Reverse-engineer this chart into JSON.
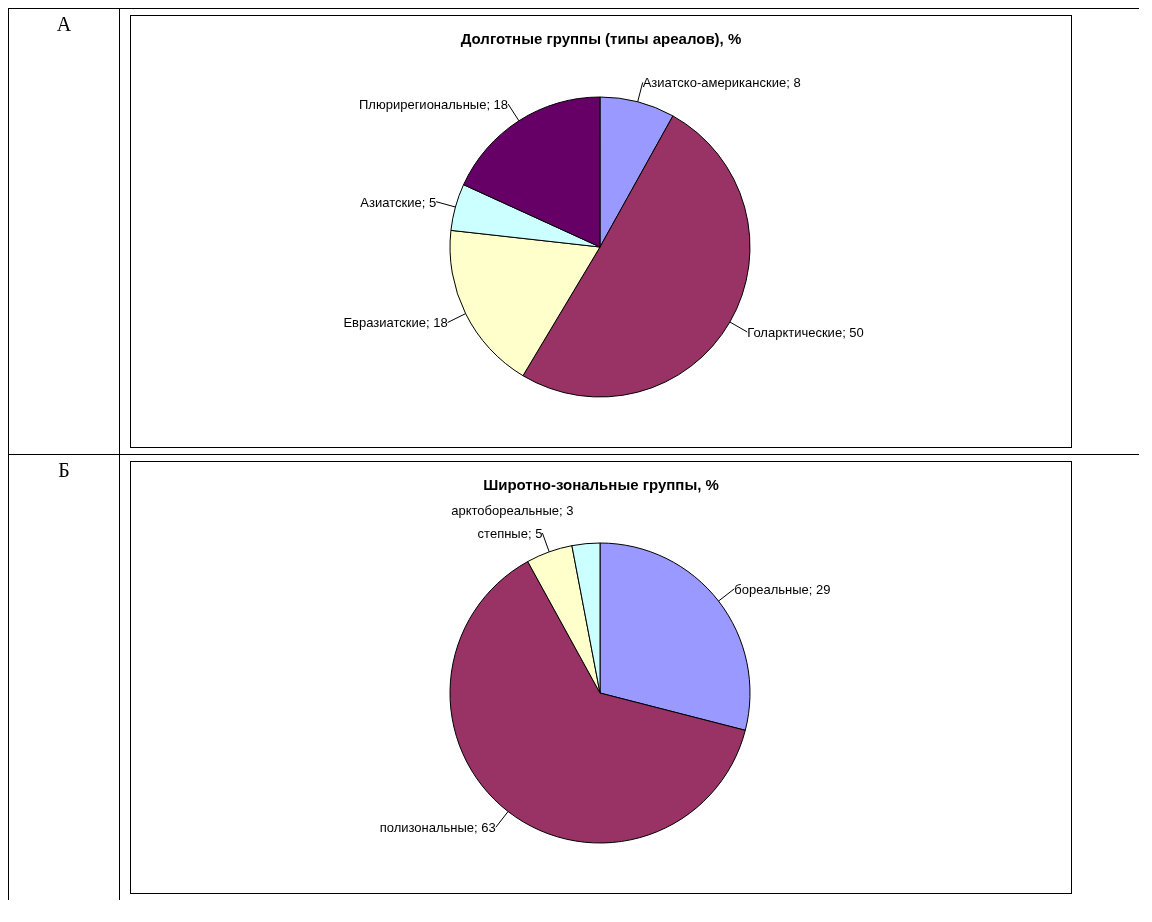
{
  "chart_data": [
    {
      "type": "pie",
      "title": "Долготные группы (типы ареалов), %",
      "annotations": [
        "А"
      ],
      "categories": [
        "Азиатско-американские",
        "Голарктические",
        "Евразиатские",
        "Азиатские",
        "Плюрирегиональные"
      ],
      "values": [
        8,
        50,
        18,
        5,
        18
      ],
      "value_labels": [
        "; 8",
        "; 50",
        "; 18",
        "; 5",
        "; 18"
      ],
      "colors": [
        "#9999ff",
        "#993366",
        "#ffffcc",
        "#ccffff",
        "#660066"
      ],
      "legend": false
    },
    {
      "type": "pie",
      "title": "Широтно-зональные группы, %",
      "annotations": [
        "Б"
      ],
      "categories": [
        "бореальные",
        "полизональные",
        "степные",
        "арктобореальные"
      ],
      "values": [
        29,
        63,
        5,
        3
      ],
      "value_labels": [
        "; 29",
        "; 63",
        "; 5",
        "; 3"
      ],
      "colors": [
        "#9999ff",
        "#993366",
        "#ffffcc",
        "#ccffff"
      ],
      "legend": false
    }
  ]
}
